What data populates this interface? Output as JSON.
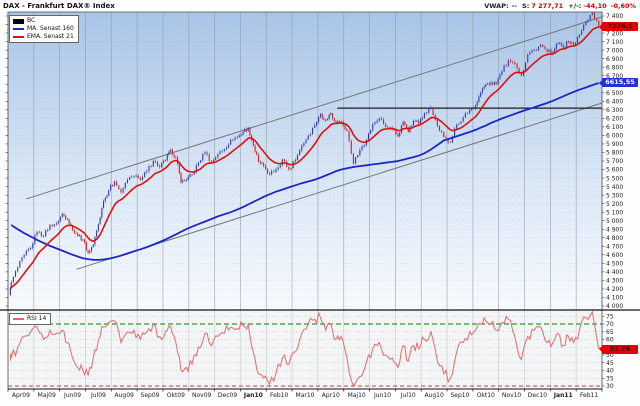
{
  "header": {
    "title": "DAX - Frankfurt DAX® Index",
    "vwap": {
      "label": "VWAP:",
      "value": "--",
      "s_label": "S:",
      "s_value": "7 277,71",
      "change_label": "+/-:",
      "change_value": "-44,10",
      "change_pct": "-0,60%"
    }
  },
  "colors": {
    "up_candle": "#2d3aa6",
    "down_candle": "#c42222",
    "ma160": "#1a28c8",
    "ema21": "#e01010",
    "rsi_line": "#e46a6a",
    "overbought_line": "#008000",
    "oversold_line": "#dd3333",
    "channel_line": "#777777",
    "resistance_line": "#1a1a1a",
    "badge_red": "#e30000",
    "badge_blue": "#2430d8"
  },
  "chart_data": [
    {
      "type": "candlestick",
      "title": "DAX - Frankfurt DAX® Index",
      "ylabel": "",
      "ylim": [
        4000,
        7400
      ],
      "y_tick_step": 100,
      "grid": true,
      "legend_position": "top-left",
      "x_categories": [
        "Apr09",
        "Maj09",
        "Jun09",
        "Jul09",
        "Aug09",
        "Sep09",
        "Okt09",
        "Nov09",
        "Dec09",
        "Jan10",
        "Feb10",
        "Mar10",
        "Apr10",
        "Maj10",
        "Jun10",
        "Jul10",
        "Aug10",
        "Sep10",
        "Okt10",
        "Nov10",
        "Dec10",
        "Jan11",
        "Feb11"
      ],
      "bold_x_labels": [
        "Jan10",
        "Jan11"
      ],
      "weeks_per_month": [
        4,
        4,
        5,
        5,
        4,
        4,
        5,
        4,
        4,
        5,
        4,
        4,
        5,
        4,
        4,
        5,
        4,
        4,
        5,
        4,
        4,
        5,
        4
      ],
      "series": [
        {
          "name": "BC",
          "role": "price-candles",
          "weekly_close": [
            4280,
            4450,
            4600,
            4680,
            4870,
            4820,
            4950,
            4970,
            5080,
            5020,
            4890,
            4820,
            4780,
            4620,
            4720,
            4960,
            5230,
            5360,
            5460,
            5330,
            5480,
            5520,
            5480,
            5580,
            5700,
            5630,
            5710,
            5830,
            5740,
            5450,
            5480,
            5540,
            5680,
            5800,
            5690,
            5780,
            5840,
            5950,
            5980,
            6040,
            6090,
            5880,
            5690,
            5640,
            5540,
            5600,
            5720,
            5600,
            5710,
            5880,
            6000,
            6120,
            6250,
            6180,
            6260,
            6150,
            6160,
            6050,
            5670,
            5830,
            5950,
            6130,
            6200,
            6100,
            6070,
            5990,
            6160,
            6040,
            6170,
            6140,
            6260,
            6330,
            6110,
            5980,
            5920,
            6130,
            6210,
            6300,
            6350,
            6500,
            6600,
            6620,
            6600,
            6750,
            6880,
            6840,
            6700,
            6950,
            7000,
            7060,
            6980,
            6980,
            7080,
            7030,
            7100,
            7060,
            7180,
            7330,
            7440,
            7270
          ]
        },
        {
          "name": "MA. Senast 160",
          "role": "sma",
          "weekly_values": [
            4950,
            4900,
            4855,
            4815,
            4775,
            4740,
            4705,
            4675,
            4650,
            4625,
            4600,
            4580,
            4560,
            4550,
            4542,
            4540,
            4545,
            4555,
            4570,
            4590,
            4615,
            4640,
            4665,
            4690,
            4720,
            4750,
            4780,
            4810,
            4840,
            4870,
            4900,
            4930,
            4960,
            4990,
            5020,
            5050,
            5075,
            5100,
            5130,
            5160,
            5190,
            5220,
            5250,
            5280,
            5310,
            5340,
            5365,
            5390,
            5415,
            5440,
            5460,
            5480,
            5505,
            5530,
            5555,
            5580,
            5600,
            5615,
            5630,
            5640,
            5650,
            5660,
            5670,
            5680,
            5690,
            5700,
            5715,
            5730,
            5746,
            5762,
            5790,
            5835,
            5888,
            5940,
            5965,
            5990,
            6015,
            6040,
            6065,
            6090,
            6115,
            6145,
            6170,
            6198,
            6225,
            6252,
            6280,
            6305,
            6330,
            6355,
            6380,
            6406,
            6432,
            6458,
            6484,
            6510,
            6536,
            6562,
            6590,
            6615
          ]
        },
        {
          "name": "EMA. Senast 21",
          "role": "ema",
          "period_days": 21
        }
      ],
      "annotations": {
        "resistance_level": 6320,
        "resistance_start_month": 12.75,
        "channel_upper": {
          "m1": 0.7,
          "v1": 5255,
          "m2": 23,
          "v2": 7390
        },
        "channel_lower": {
          "m1": 2.65,
          "v1": 4430,
          "m2": 23,
          "v2": 6380
        }
      },
      "last_values": {
        "price": "7 277,71",
        "ema_badge": "7276,1",
        "ma_badge": "6615,55"
      }
    },
    {
      "type": "line",
      "name": "RSI 14",
      "ylim": [
        25,
        80
      ],
      "y_ticks": [
        30,
        35,
        40,
        45,
        50,
        55,
        60,
        65,
        70,
        75
      ],
      "overbought": 70,
      "oversold": 30,
      "grid": true,
      "weekly_values": [
        48,
        55,
        62,
        65,
        68,
        60,
        66,
        64,
        66,
        58,
        48,
        42,
        40,
        37,
        48,
        60,
        68,
        71,
        72,
        58,
        65,
        66,
        60,
        65,
        70,
        62,
        65,
        68,
        58,
        40,
        42,
        44,
        55,
        64,
        56,
        62,
        64,
        68,
        67,
        69,
        70,
        52,
        38,
        35,
        31,
        38,
        48,
        44,
        52,
        64,
        70,
        73,
        74,
        66,
        70,
        60,
        62,
        48,
        30,
        36,
        45,
        54,
        58,
        50,
        48,
        42,
        56,
        46,
        56,
        54,
        60,
        65,
        46,
        38,
        35,
        52,
        58,
        65,
        66,
        70,
        72,
        70,
        66,
        71,
        73,
        62,
        47,
        62,
        66,
        68,
        58,
        58,
        64,
        56,
        62,
        58,
        66,
        74,
        78,
        54
      ],
      "last_value": 53.76,
      "last_label": "53,76"
    }
  ]
}
